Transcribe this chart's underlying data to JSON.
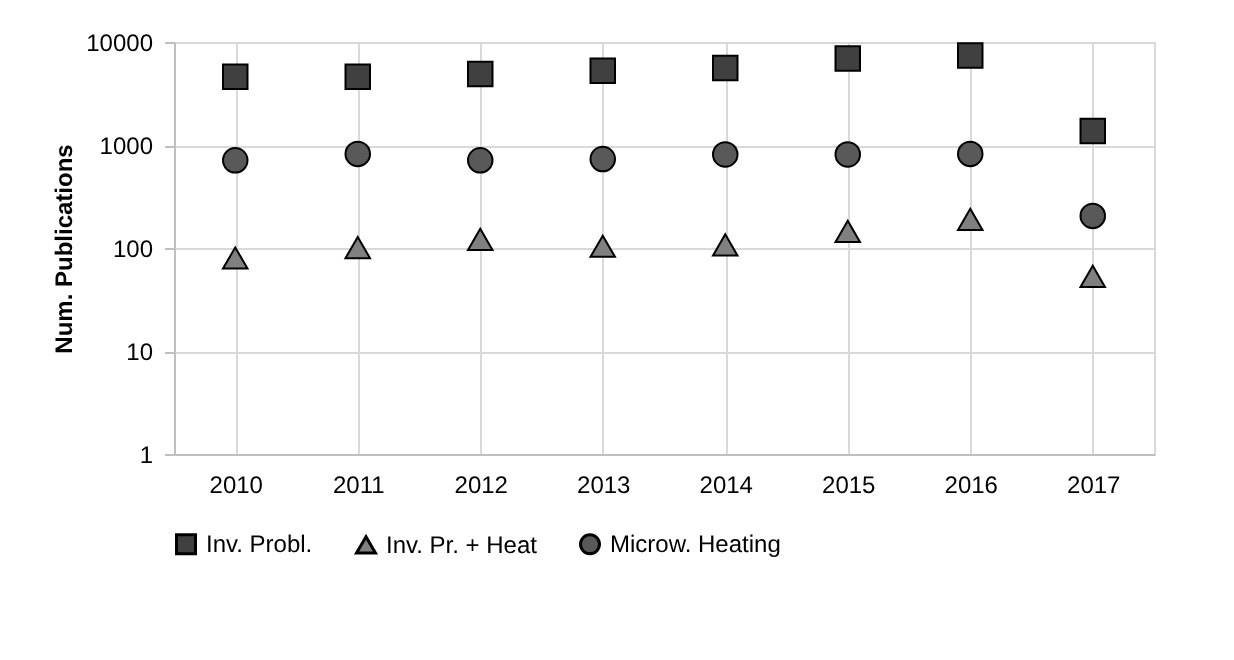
{
  "chart_data": {
    "type": "scatter",
    "ylabel": "Num. Publications",
    "categories": [
      "2010",
      "2011",
      "2012",
      "2013",
      "2014",
      "2015",
      "2016",
      "2017"
    ],
    "series": [
      {
        "name": "Inv. Probl.",
        "color": "#404040",
        "marker": "square",
        "values": [
          4600,
          4600,
          4900,
          5250,
          5600,
          6900,
          7400,
          1370
        ]
      },
      {
        "name": "Inv. Pr. + Heat",
        "color": "#808080",
        "marker": "triangle",
        "values": [
          80,
          101,
          121,
          104,
          107,
          145,
          190,
          53
        ]
      },
      {
        "name": "Microw. Heating",
        "color": "#595959",
        "marker": "circle",
        "values": [
          710,
          820,
          710,
          730,
          810,
          810,
          820,
          205
        ]
      }
    ],
    "log": "y",
    "ylim": [
      1,
      10000
    ],
    "yticks": [
      1,
      10,
      100,
      1000,
      10000
    ],
    "grid": true,
    "legend": "bottom"
  }
}
